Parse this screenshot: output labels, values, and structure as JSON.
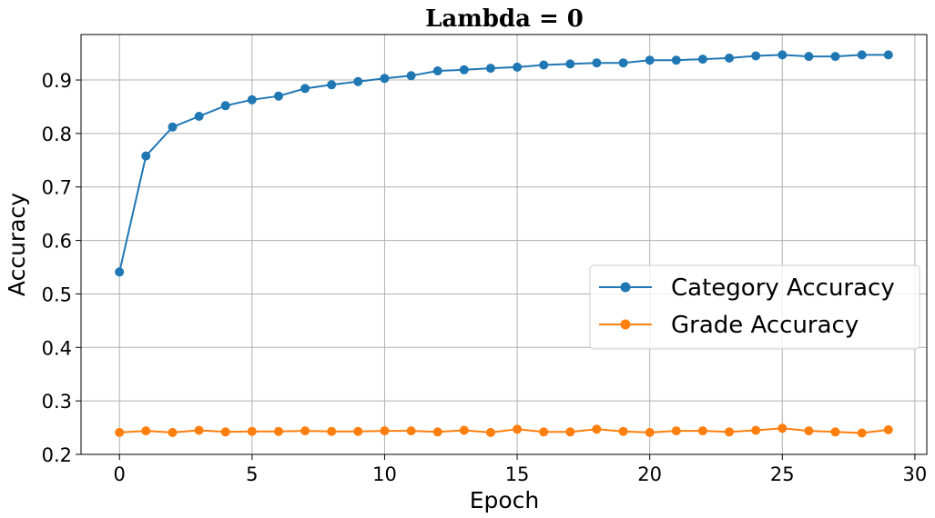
{
  "chart_data": {
    "type": "line",
    "title": "Lambda = 0",
    "xlabel": "Epoch",
    "ylabel": "Accuracy",
    "xlim": [
      -1.45,
      30.45
    ],
    "ylim": [
      0.2,
      0.985
    ],
    "xticks": [
      0,
      5,
      10,
      15,
      20,
      25,
      30
    ],
    "yticks": [
      0.2,
      0.3,
      0.4,
      0.5,
      0.6,
      0.7,
      0.8,
      0.9
    ],
    "ytick_labels": [
      "0.2",
      "0.3",
      "0.4",
      "0.5",
      "0.6",
      "0.7",
      "0.8",
      "0.9"
    ],
    "grid": true,
    "legend_position": "center-right",
    "x": [
      0,
      1,
      2,
      3,
      4,
      5,
      6,
      7,
      8,
      9,
      10,
      11,
      12,
      13,
      14,
      15,
      16,
      17,
      18,
      19,
      20,
      21,
      22,
      23,
      24,
      25,
      26,
      27,
      28,
      29
    ],
    "series": [
      {
        "name": "Category Accuracy",
        "color": "#1f77b4",
        "marker": "circle",
        "values": [
          0.541,
          0.758,
          0.812,
          0.832,
          0.852,
          0.863,
          0.87,
          0.884,
          0.891,
          0.897,
          0.903,
          0.908,
          0.917,
          0.919,
          0.922,
          0.924,
          0.928,
          0.93,
          0.932,
          0.932,
          0.937,
          0.937,
          0.939,
          0.941,
          0.945,
          0.947,
          0.944,
          0.944,
          0.947,
          0.947
        ]
      },
      {
        "name": "Grade Accuracy",
        "color": "#ff7f0e",
        "marker": "circle",
        "values": [
          0.241,
          0.244,
          0.241,
          0.245,
          0.242,
          0.243,
          0.243,
          0.244,
          0.243,
          0.243,
          0.244,
          0.244,
          0.242,
          0.245,
          0.241,
          0.247,
          0.242,
          0.242,
          0.247,
          0.243,
          0.241,
          0.244,
          0.244,
          0.242,
          0.245,
          0.249,
          0.244,
          0.242,
          0.24,
          0.246
        ]
      }
    ]
  }
}
